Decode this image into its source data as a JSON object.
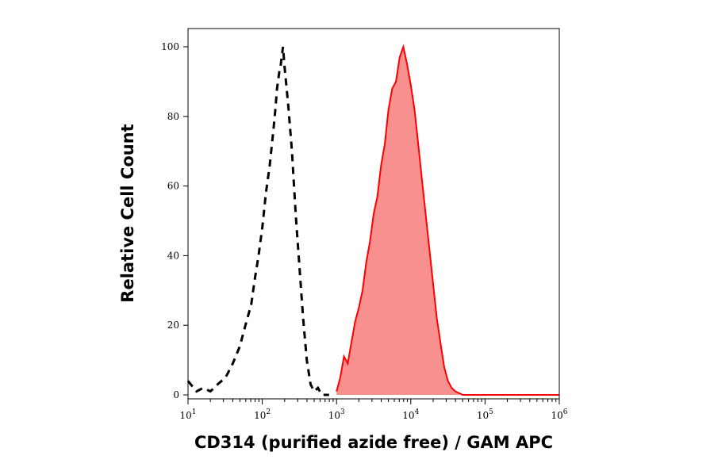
{
  "chart_data": {
    "type": "area",
    "title": "",
    "xlabel": "CD314 (purified azide free) / GAM APC",
    "ylabel": "Relative Cell Count",
    "x_scale": "log",
    "xlim": [
      10,
      1000000
    ],
    "ylim": [
      0,
      100
    ],
    "x_ticks": [
      {
        "value": 10,
        "base": "10",
        "exp": "1"
      },
      {
        "value": 100,
        "base": "10",
        "exp": "2"
      },
      {
        "value": 1000,
        "base": "10",
        "exp": "3"
      },
      {
        "value": 10000,
        "base": "10",
        "exp": "4"
      },
      {
        "value": 100000,
        "base": "10",
        "exp": "5"
      },
      {
        "value": 1000000,
        "base": "10",
        "exp": "6"
      }
    ],
    "y_ticks": [
      0,
      20,
      40,
      60,
      80,
      100
    ],
    "grid": false,
    "legend": "none",
    "series": [
      {
        "style": "dashed-outline",
        "color": "#000000",
        "x": [
          10,
          13,
          16,
          20,
          25,
          32,
          40,
          50,
          56,
          63,
          71,
          79,
          89,
          100,
          112,
          126,
          141,
          150,
          158,
          170,
          178,
          190,
          200,
          224,
          251,
          282,
          316,
          355,
          398,
          447,
          501,
          562,
          631,
          708,
          794
        ],
        "y": [
          4,
          1,
          2,
          1,
          3,
          5,
          9,
          14,
          18,
          22,
          26,
          33,
          40,
          48,
          58,
          66,
          76,
          82,
          88,
          93,
          95,
          100,
          94,
          83,
          70,
          52,
          37,
          22,
          10,
          3,
          1,
          2,
          0,
          0,
          0
        ]
      },
      {
        "style": "filled",
        "color": "#ff0000",
        "fill": "#f89090",
        "x": [
          1000,
          1122,
          1259,
          1413,
          1585,
          1778,
          1995,
          2239,
          2512,
          2818,
          3162,
          3548,
          3981,
          4467,
          5012,
          5623,
          6310,
          7079,
          7943,
          8913,
          10000,
          11220,
          12589,
          14125,
          15849,
          17783,
          19953,
          22387,
          25119,
          28184,
          31623,
          35481,
          39811,
          50119,
          1000000
        ],
        "y": [
          1,
          5,
          11,
          9,
          15,
          21,
          25,
          30,
          38,
          44,
          52,
          57,
          66,
          72,
          82,
          88,
          90,
          97,
          100,
          95,
          89,
          82,
          72,
          62,
          52,
          42,
          32,
          22,
          15,
          8,
          4,
          2,
          1,
          0,
          0
        ]
      }
    ]
  }
}
